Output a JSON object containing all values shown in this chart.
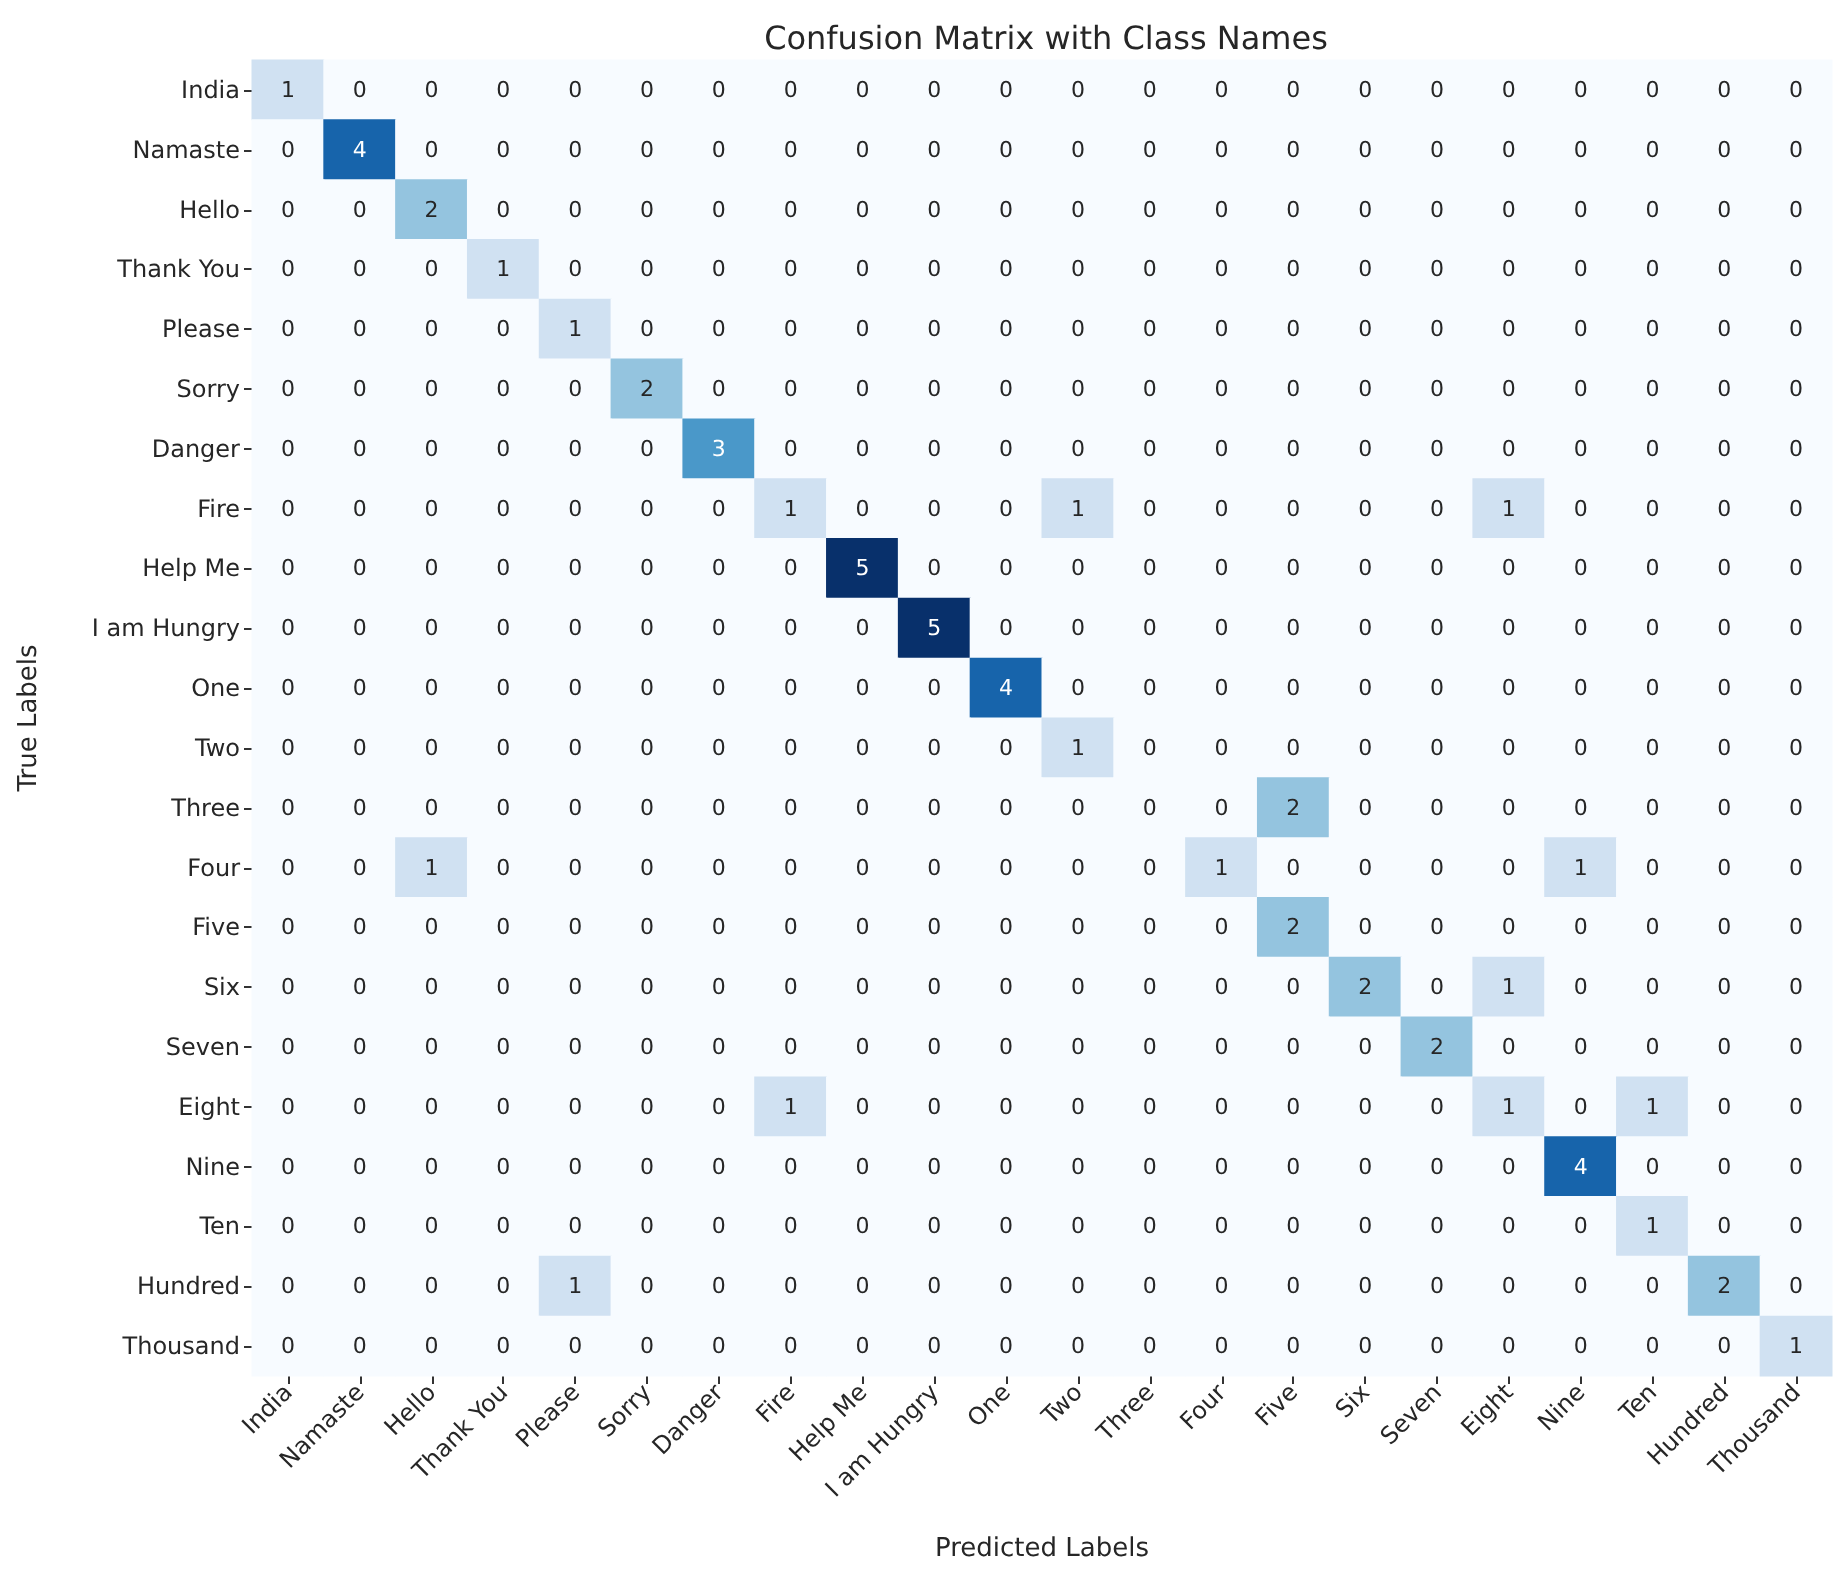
{
  "chart_data": {
    "type": "heatmap",
    "title": "Confusion Matrix with Class Names",
    "xlabel": "Predicted Labels",
    "ylabel": "True Labels",
    "data_labels": true,
    "categories": [
      "India",
      "Namaste",
      "Hello",
      "Thank You",
      "Please",
      "Sorry",
      "Danger",
      "Fire",
      "Help Me",
      "I am Hungry",
      "One",
      "Two",
      "Three",
      "Four",
      "Five",
      "Six",
      "Seven",
      "Eight",
      "Nine",
      "Ten",
      "Hundred",
      "Thousand"
    ],
    "y_categories": [
      "India",
      "Namaste",
      "Hello",
      "Thank You",
      "Please",
      "Sorry",
      "Danger",
      "Fire",
      "Help Me",
      "I am Hungry",
      "One",
      "Two",
      "Three",
      "Four",
      "Five",
      "Six",
      "Seven",
      "Eight",
      "Nine",
      "Ten",
      "Hundred",
      "Thousand"
    ],
    "cells": [
      [
        1,
        0,
        0,
        0,
        0,
        0,
        0,
        0,
        0,
        0,
        0,
        0,
        0,
        0,
        0,
        0,
        0,
        0,
        0,
        0,
        0,
        0
      ],
      [
        0,
        4,
        0,
        0,
        0,
        0,
        0,
        0,
        0,
        0,
        0,
        0,
        0,
        0,
        0,
        0,
        0,
        0,
        0,
        0,
        0,
        0
      ],
      [
        0,
        0,
        2,
        0,
        0,
        0,
        0,
        0,
        0,
        0,
        0,
        0,
        0,
        0,
        0,
        0,
        0,
        0,
        0,
        0,
        0,
        0
      ],
      [
        0,
        0,
        0,
        1,
        0,
        0,
        0,
        0,
        0,
        0,
        0,
        0,
        0,
        0,
        0,
        0,
        0,
        0,
        0,
        0,
        0,
        0
      ],
      [
        0,
        0,
        0,
        0,
        1,
        0,
        0,
        0,
        0,
        0,
        0,
        0,
        0,
        0,
        0,
        0,
        0,
        0,
        0,
        0,
        0,
        0
      ],
      [
        0,
        0,
        0,
        0,
        0,
        2,
        0,
        0,
        0,
        0,
        0,
        0,
        0,
        0,
        0,
        0,
        0,
        0,
        0,
        0,
        0,
        0
      ],
      [
        0,
        0,
        0,
        0,
        0,
        0,
        3,
        0,
        0,
        0,
        0,
        0,
        0,
        0,
        0,
        0,
        0,
        0,
        0,
        0,
        0,
        0
      ],
      [
        0,
        0,
        0,
        0,
        0,
        0,
        0,
        1,
        0,
        0,
        0,
        1,
        0,
        0,
        0,
        0,
        0,
        1,
        0,
        0,
        0,
        0
      ],
      [
        0,
        0,
        0,
        0,
        0,
        0,
        0,
        0,
        5,
        0,
        0,
        0,
        0,
        0,
        0,
        0,
        0,
        0,
        0,
        0,
        0,
        0
      ],
      [
        0,
        0,
        0,
        0,
        0,
        0,
        0,
        0,
        0,
        5,
        0,
        0,
        0,
        0,
        0,
        0,
        0,
        0,
        0,
        0,
        0,
        0
      ],
      [
        0,
        0,
        0,
        0,
        0,
        0,
        0,
        0,
        0,
        0,
        4,
        0,
        0,
        0,
        0,
        0,
        0,
        0,
        0,
        0,
        0,
        0
      ],
      [
        0,
        0,
        0,
        0,
        0,
        0,
        0,
        0,
        0,
        0,
        0,
        1,
        0,
        0,
        0,
        0,
        0,
        0,
        0,
        0,
        0,
        0
      ],
      [
        0,
        0,
        0,
        0,
        0,
        0,
        0,
        0,
        0,
        0,
        0,
        0,
        0,
        0,
        2,
        0,
        0,
        0,
        0,
        0,
        0,
        0
      ],
      [
        0,
        0,
        1,
        0,
        0,
        0,
        0,
        0,
        0,
        0,
        0,
        0,
        0,
        1,
        0,
        0,
        0,
        0,
        1,
        0,
        0,
        0
      ],
      [
        0,
        0,
        0,
        0,
        0,
        0,
        0,
        0,
        0,
        0,
        0,
        0,
        0,
        0,
        2,
        0,
        0,
        0,
        0,
        0,
        0,
        0
      ],
      [
        0,
        0,
        0,
        0,
        0,
        0,
        0,
        0,
        0,
        0,
        0,
        0,
        0,
        0,
        0,
        2,
        0,
        1,
        0,
        0,
        0,
        0
      ],
      [
        0,
        0,
        0,
        0,
        0,
        0,
        0,
        0,
        0,
        0,
        0,
        0,
        0,
        0,
        0,
        0,
        2,
        0,
        0,
        0,
        0,
        0
      ],
      [
        0,
        0,
        0,
        0,
        0,
        0,
        0,
        1,
        0,
        0,
        0,
        0,
        0,
        0,
        0,
        0,
        0,
        1,
        0,
        1,
        0,
        0
      ],
      [
        0,
        0,
        0,
        0,
        0,
        0,
        0,
        0,
        0,
        0,
        0,
        0,
        0,
        0,
        0,
        0,
        0,
        0,
        4,
        0,
        0,
        0
      ],
      [
        0,
        0,
        0,
        0,
        0,
        0,
        0,
        0,
        0,
        0,
        0,
        0,
        0,
        0,
        0,
        0,
        0,
        0,
        0,
        1,
        0,
        0
      ],
      [
        0,
        0,
        0,
        0,
        1,
        0,
        0,
        0,
        0,
        0,
        0,
        0,
        0,
        0,
        0,
        0,
        0,
        0,
        0,
        0,
        2,
        0
      ],
      [
        0,
        0,
        0,
        0,
        0,
        0,
        0,
        0,
        0,
        0,
        0,
        0,
        0,
        0,
        0,
        0,
        0,
        0,
        0,
        0,
        0,
        1
      ]
    ]
  }
}
